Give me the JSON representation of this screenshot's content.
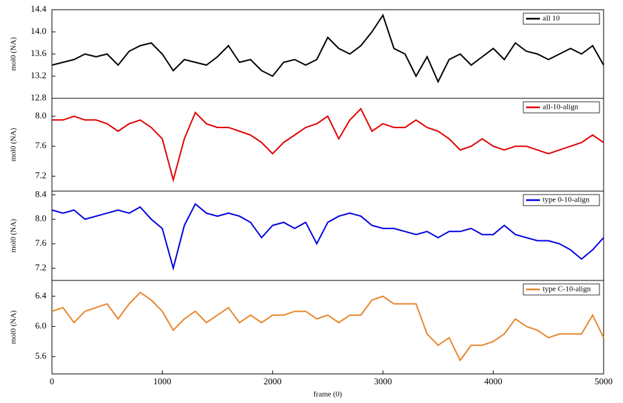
{
  "chart_data": [
    {
      "type": "line",
      "ylabel": "mol0 (NA)",
      "xlim": [
        0,
        5000
      ],
      "ylim": [
        12.8,
        14.4
      ],
      "yticks": [
        12.8,
        13.2,
        13.6,
        {
          "value": 14,
          "label": "14.0"
        },
        14.4
      ],
      "x": [
        0,
        100,
        200,
        300,
        400,
        500,
        600,
        700,
        800,
        900,
        1000,
        1100,
        1200,
        1300,
        1400,
        1500,
        1600,
        1700,
        1800,
        1900,
        2000,
        2100,
        2200,
        2300,
        2400,
        2500,
        2600,
        2700,
        2800,
        2900,
        3000,
        3100,
        3200,
        3300,
        3400,
        3500,
        3600,
        3700,
        3800,
        3900,
        4000,
        4100,
        4200,
        4300,
        4400,
        4500,
        4600,
        4700,
        4800,
        4900,
        5000
      ],
      "series": [
        {
          "name": "all 10",
          "color": "#000000",
          "values": [
            13.4,
            13.45,
            13.5,
            13.6,
            13.55,
            13.6,
            13.4,
            13.65,
            13.75,
            13.8,
            13.6,
            13.3,
            13.5,
            13.45,
            13.4,
            13.55,
            13.75,
            13.45,
            13.5,
            13.3,
            13.2,
            13.45,
            13.5,
            13.4,
            13.5,
            13.9,
            13.7,
            13.6,
            13.75,
            14.0,
            14.3,
            13.7,
            13.6,
            13.2,
            13.55,
            13.1,
            13.5,
            13.6,
            13.4,
            13.55,
            13.7,
            13.5,
            13.8,
            13.65,
            13.6,
            13.5,
            13.6,
            13.7,
            13.6,
            13.75,
            13.4
          ]
        }
      ]
    },
    {
      "type": "line",
      "ylabel": "mol0 (NA)",
      "xlim": [
        0,
        5000
      ],
      "ylim": [
        7.0,
        8.24
      ],
      "yticks": [
        7.2,
        7.6,
        {
          "value": 8,
          "label": "8.0"
        }
      ],
      "x": [
        0,
        100,
        200,
        300,
        400,
        500,
        600,
        700,
        800,
        900,
        1000,
        1100,
        1200,
        1300,
        1400,
        1500,
        1600,
        1700,
        1800,
        1900,
        2000,
        2100,
        2200,
        2300,
        2400,
        2500,
        2600,
        2700,
        2800,
        2900,
        3000,
        3100,
        3200,
        3300,
        3400,
        3500,
        3600,
        3700,
        3800,
        3900,
        4000,
        4100,
        4200,
        4300,
        4400,
        4500,
        4600,
        4700,
        4800,
        4900,
        5000
      ],
      "series": [
        {
          "name": "all-10-align",
          "color": "#e00000",
          "values": [
            7.95,
            7.95,
            8.0,
            7.95,
            7.95,
            7.9,
            7.8,
            7.9,
            7.95,
            7.85,
            7.7,
            7.15,
            7.7,
            8.05,
            7.9,
            7.85,
            7.85,
            7.8,
            7.75,
            7.65,
            7.5,
            7.65,
            7.75,
            7.85,
            7.9,
            8.0,
            7.7,
            7.95,
            8.1,
            7.8,
            7.9,
            7.85,
            7.85,
            7.95,
            7.85,
            7.8,
            7.7,
            7.55,
            7.6,
            7.7,
            7.6,
            7.55,
            7.6,
            7.6,
            7.55,
            7.5,
            7.55,
            7.6,
            7.65,
            7.75,
            7.65
          ]
        }
      ]
    },
    {
      "type": "line",
      "ylabel": "mol0 (NA)",
      "xlim": [
        0,
        5000
      ],
      "ylim": [
        7.0,
        8.46
      ],
      "yticks": [
        7.2,
        7.6,
        {
          "value": 8,
          "label": "8.0"
        },
        8.4
      ],
      "x": [
        0,
        100,
        200,
        300,
        400,
        500,
        600,
        700,
        800,
        900,
        1000,
        1100,
        1200,
        1300,
        1400,
        1500,
        1600,
        1700,
        1800,
        1900,
        2000,
        2100,
        2200,
        2300,
        2400,
        2500,
        2600,
        2700,
        2800,
        2900,
        3000,
        3100,
        3200,
        3300,
        3400,
        3500,
        3600,
        3700,
        3800,
        3900,
        4000,
        4100,
        4200,
        4300,
        4400,
        4500,
        4600,
        4700,
        4800,
        4900,
        5000
      ],
      "series": [
        {
          "name": "type 0-10-align",
          "color": "#0000e0",
          "values": [
            8.15,
            8.1,
            8.15,
            8.0,
            8.05,
            8.1,
            8.15,
            8.1,
            8.2,
            8.0,
            7.85,
            7.2,
            7.9,
            8.25,
            8.1,
            8.05,
            8.1,
            8.05,
            7.95,
            7.7,
            7.9,
            7.95,
            7.85,
            7.95,
            7.6,
            7.95,
            8.05,
            8.1,
            8.05,
            7.9,
            7.85,
            7.85,
            7.8,
            7.75,
            7.8,
            7.7,
            7.8,
            7.8,
            7.85,
            7.75,
            7.75,
            7.9,
            7.75,
            7.7,
            7.65,
            7.65,
            7.6,
            7.5,
            7.35,
            7.5,
            7.7
          ]
        }
      ]
    },
    {
      "type": "line",
      "ylabel": "mol0 (NA)",
      "xlabel": "frame (0)",
      "xlim": [
        0,
        5000
      ],
      "xticks": [
        0,
        1000,
        2000,
        3000,
        4000,
        5000
      ],
      "ylim": [
        5.37,
        6.61
      ],
      "yticks": [
        5.6,
        {
          "value": 6,
          "label": "6.0"
        },
        6.4
      ],
      "x": [
        0,
        100,
        200,
        300,
        400,
        500,
        600,
        700,
        800,
        900,
        1000,
        1100,
        1200,
        1300,
        1400,
        1500,
        1600,
        1700,
        1800,
        1900,
        2000,
        2100,
        2200,
        2300,
        2400,
        2500,
        2600,
        2700,
        2800,
        2900,
        3000,
        3100,
        3200,
        3300,
        3400,
        3500,
        3600,
        3700,
        3800,
        3900,
        4000,
        4100,
        4200,
        4300,
        4400,
        4500,
        4600,
        4700,
        4800,
        4900,
        5000
      ],
      "series": [
        {
          "name": "type C-10-align",
          "color": "#e8852a",
          "values": [
            6.2,
            6.25,
            6.05,
            6.2,
            6.25,
            6.3,
            6.1,
            6.3,
            6.45,
            6.35,
            6.2,
            5.95,
            6.1,
            6.2,
            6.05,
            6.15,
            6.25,
            6.05,
            6.15,
            6.05,
            6.15,
            6.15,
            6.2,
            6.2,
            6.1,
            6.15,
            6.05,
            6.15,
            6.15,
            6.35,
            6.4,
            6.3,
            6.3,
            6.3,
            5.9,
            5.75,
            5.85,
            5.55,
            5.75,
            5.75,
            5.8,
            5.9,
            6.1,
            6.0,
            5.95,
            5.85,
            5.9,
            5.9,
            5.9,
            6.15,
            5.85
          ]
        }
      ]
    }
  ]
}
